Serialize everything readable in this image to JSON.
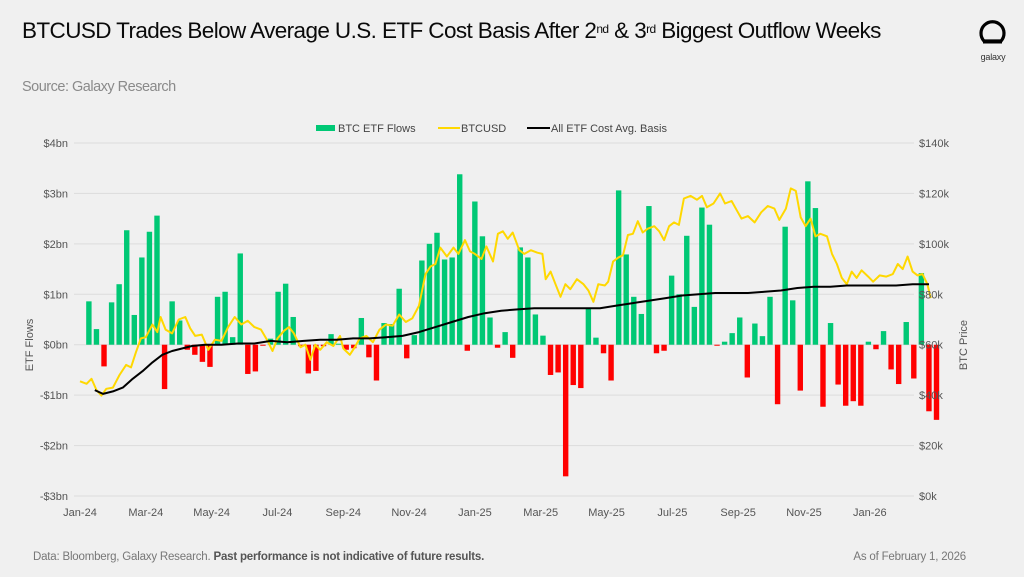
{
  "header": {
    "title_part1": "BTCUSD Trades Below Average U.S. ETF Cost Basis After 2",
    "title_sup1": "nd",
    "title_part2": " & 3",
    "title_sup2": "rd",
    "title_part3": " Biggest Outflow Weeks",
    "subtitle": "Source: Galaxy Research",
    "logo_text": "galaxy"
  },
  "footer": {
    "source": "Data: Bloomberg, Galaxy Research.",
    "disclaimer": "Past performance is not indicative of future results.",
    "as_of": "As of February 1, 2026"
  },
  "colors": {
    "inflow": "#00c875",
    "outflow": "#ff0000",
    "btcusd": "#ffd800",
    "cost_basis": "#000000",
    "grid": "#dcdcdc"
  },
  "chart_data": {
    "type": "bar+line",
    "title": "BTCUSD Trades Below Average U.S. ETF Cost Basis After 2nd & 3rd Biggest Outflow Weeks",
    "legend": [
      "BTC ETF Flows",
      "BTCUSD",
      "All ETF Cost Avg. Basis"
    ],
    "legend_position": "top-center",
    "ylabel_left": "ETF Flows",
    "ylabel_right": "BTC Price",
    "ylim_left": [
      -3,
      4
    ],
    "ylim_right": [
      0,
      140
    ],
    "yticks_left": [
      "$4bn",
      "$3bn",
      "$2bn",
      "$1bn",
      "$0bn",
      "-$1bn",
      "-$2bn",
      "-$3bn"
    ],
    "yticks_right": [
      "$140k",
      "$120k",
      "$100k",
      "$80k",
      "$60k",
      "$40k",
      "$20k",
      "$0k"
    ],
    "xticks": [
      "Jan-24",
      "Mar-24",
      "May-24",
      "Jul-24",
      "Sep-24",
      "Nov-24",
      "Jan-25",
      "Mar-25",
      "May-25",
      "Jul-25",
      "Sep-25",
      "Nov-25",
      "Jan-26"
    ],
    "grid": true,
    "x_range_months": [
      0,
      25.1
    ],
    "weekly_flows_bn": [
      0.86,
      0.31,
      -0.43,
      0.84,
      1.2,
      2.27,
      0.59,
      1.73,
      2.24,
      2.56,
      -0.88,
      0.86,
      0.48,
      -0.1,
      -0.2,
      -0.34,
      -0.44,
      0.95,
      1.05,
      0.15,
      1.81,
      -0.58,
      -0.53,
      -0.02,
      0.12,
      1.05,
      1.21,
      0.55,
      -0.03,
      -0.57,
      -0.52,
      -0.03,
      0.21,
      0.02,
      -0.1,
      -0.07,
      0.53,
      -0.25,
      -0.71,
      0.43,
      0.41,
      1.11,
      -0.27,
      0.19,
      1.67,
      2.0,
      2.22,
      1.69,
      1.73,
      3.38,
      -0.12,
      2.84,
      2.15,
      0.54,
      -0.06,
      0.25,
      -0.26,
      1.93,
      1.73,
      0.6,
      0.18,
      -0.6,
      -0.55,
      -2.61,
      -0.8,
      -0.86,
      0.73,
      0.14,
      -0.17,
      -0.71,
      3.06,
      1.79,
      0.95,
      0.61,
      2.75,
      -0.17,
      -0.12,
      1.37,
      1.0,
      2.16,
      0.75,
      2.72,
      2.38,
      -0.02,
      0.06,
      0.23,
      0.54,
      -0.65,
      0.42,
      0.17,
      0.95,
      -1.18,
      2.34,
      0.88,
      -0.91,
      3.24,
      2.71,
      -1.23,
      0.43,
      -0.79,
      -1.21,
      -1.12,
      -1.21,
      0.06,
      -0.09,
      0.27,
      -0.49,
      -0.78,
      0.45,
      -0.67,
      1.42,
      -1.32,
      -1.49
    ],
    "btcusd_k": [
      [
        0.0,
        45.5
      ],
      [
        0.2,
        44.5
      ],
      [
        0.35,
        46.5
      ],
      [
        0.5,
        42.0
      ],
      [
        0.65,
        39.8
      ],
      [
        0.8,
        42.5
      ],
      [
        1.0,
        43.0
      ],
      [
        1.2,
        48.0
      ],
      [
        1.4,
        52.0
      ],
      [
        1.55,
        51.0
      ],
      [
        1.7,
        57.0
      ],
      [
        1.85,
        62.5
      ],
      [
        2.0,
        63.0
      ],
      [
        2.2,
        68.0
      ],
      [
        2.35,
        65.0
      ],
      [
        2.45,
        71.0
      ],
      [
        2.6,
        66.0
      ],
      [
        2.8,
        64.5
      ],
      [
        3.0,
        70.0
      ],
      [
        3.2,
        71.0
      ],
      [
        3.35,
        66.5
      ],
      [
        3.5,
        63.5
      ],
      [
        3.7,
        64.0
      ],
      [
        3.9,
        58.0
      ],
      [
        4.1,
        62.0
      ],
      [
        4.3,
        61.5
      ],
      [
        4.5,
        67.0
      ],
      [
        4.7,
        71.0
      ],
      [
        4.9,
        68.0
      ],
      [
        5.1,
        69.5
      ],
      [
        5.3,
        67.0
      ],
      [
        5.5,
        66.0
      ],
      [
        5.7,
        61.5
      ],
      [
        5.85,
        57.5
      ],
      [
        6.0,
        62.5
      ],
      [
        6.2,
        65.5
      ],
      [
        6.35,
        67.0
      ],
      [
        6.5,
        64.5
      ],
      [
        6.7,
        59.0
      ],
      [
        6.85,
        60.0
      ],
      [
        7.0,
        54.0
      ],
      [
        7.15,
        60.0
      ],
      [
        7.3,
        58.0
      ],
      [
        7.5,
        61.0
      ],
      [
        7.7,
        59.5
      ],
      [
        7.9,
        63.5
      ],
      [
        8.0,
        58.5
      ],
      [
        8.2,
        56.0
      ],
      [
        8.35,
        59.0
      ],
      [
        8.5,
        62.5
      ],
      [
        8.7,
        63.5
      ],
      [
        8.9,
        61.0
      ],
      [
        9.1,
        66.0
      ],
      [
        9.3,
        68.0
      ],
      [
        9.5,
        67.5
      ],
      [
        9.7,
        72.0
      ],
      [
        9.9,
        69.0
      ],
      [
        10.1,
        70.5
      ],
      [
        10.3,
        75.5
      ],
      [
        10.5,
        88.0
      ],
      [
        10.65,
        91.0
      ],
      [
        10.8,
        92.0
      ],
      [
        10.95,
        98.5
      ],
      [
        11.15,
        95.0
      ],
      [
        11.35,
        98.5
      ],
      [
        11.5,
        96.0
      ],
      [
        11.7,
        101.5
      ],
      [
        11.85,
        97.0
      ],
      [
        12.0,
        96.0
      ],
      [
        12.2,
        94.0
      ],
      [
        12.35,
        99.0
      ],
      [
        12.55,
        93.0
      ],
      [
        12.7,
        104.0
      ],
      [
        12.85,
        105.0
      ],
      [
        13.0,
        102.0
      ],
      [
        13.15,
        104.5
      ],
      [
        13.35,
        97.5
      ],
      [
        13.5,
        96.0
      ],
      [
        13.7,
        97.5
      ],
      [
        13.9,
        96.5
      ],
      [
        14.05,
        96.0
      ],
      [
        14.15,
        86.0
      ],
      [
        14.3,
        89.0
      ],
      [
        14.45,
        84.0
      ],
      [
        14.6,
        79.0
      ],
      [
        14.75,
        84.0
      ],
      [
        14.9,
        82.0
      ],
      [
        15.1,
        86.0
      ],
      [
        15.3,
        84.0
      ],
      [
        15.45,
        81.5
      ],
      [
        15.6,
        77.0
      ],
      [
        15.75,
        84.0
      ],
      [
        15.95,
        83.5
      ],
      [
        16.05,
        85.0
      ],
      [
        16.2,
        93.0
      ],
      [
        16.35,
        94.5
      ],
      [
        16.5,
        95.5
      ],
      [
        16.65,
        103.5
      ],
      [
        16.8,
        104.0
      ],
      [
        16.95,
        109.0
      ],
      [
        17.1,
        104.5
      ],
      [
        17.25,
        106.0
      ],
      [
        17.45,
        107.0
      ],
      [
        17.6,
        105.0
      ],
      [
        17.75,
        101.5
      ],
      [
        17.9,
        107.0
      ],
      [
        18.05,
        108.5
      ],
      [
        18.2,
        107.5
      ],
      [
        18.35,
        118.0
      ],
      [
        18.55,
        119.0
      ],
      [
        18.75,
        117.5
      ],
      [
        18.9,
        119.0
      ],
      [
        19.05,
        114.5
      ],
      [
        19.25,
        116.0
      ],
      [
        19.45,
        120.0
      ],
      [
        19.6,
        116.0
      ],
      [
        19.8,
        117.0
      ],
      [
        19.95,
        113.5
      ],
      [
        20.1,
        110.0
      ],
      [
        20.3,
        111.0
      ],
      [
        20.5,
        108.5
      ],
      [
        20.7,
        112.5
      ],
      [
        20.9,
        115.0
      ],
      [
        21.1,
        114.0
      ],
      [
        21.25,
        109.5
      ],
      [
        21.45,
        114.0
      ],
      [
        21.6,
        122.0
      ],
      [
        21.75,
        121.0
      ],
      [
        21.9,
        110.5
      ],
      [
        22.05,
        107.0
      ],
      [
        22.2,
        110.0
      ],
      [
        22.35,
        103.0
      ],
      [
        22.5,
        104.0
      ],
      [
        22.7,
        103.0
      ],
      [
        22.85,
        96.0
      ],
      [
        23.0,
        92.0
      ],
      [
        23.15,
        86.5
      ],
      [
        23.3,
        84.0
      ],
      [
        23.45,
        89.0
      ],
      [
        23.6,
        86.5
      ],
      [
        23.75,
        89.5
      ],
      [
        23.95,
        87.0
      ],
      [
        24.1,
        85.0
      ],
      [
        24.3,
        87.5
      ],
      [
        24.5,
        87.0
      ],
      [
        24.7,
        88.0
      ],
      [
        24.85,
        92.0
      ],
      [
        25.0,
        90.0
      ],
      [
        25.15,
        95.0
      ],
      [
        25.3,
        89.0
      ],
      [
        25.45,
        87.5
      ],
      [
        25.6,
        88.0
      ],
      [
        25.75,
        84.0
      ],
      [
        25.85,
        78.5
      ]
    ],
    "cost_basis_k": [
      [
        0.45,
        42.0
      ],
      [
        0.7,
        40.5
      ],
      [
        1.0,
        41.5
      ],
      [
        1.3,
        43.0
      ],
      [
        1.6,
        46.5
      ],
      [
        1.9,
        49.5
      ],
      [
        2.2,
        53.0
      ],
      [
        2.5,
        56.0
      ],
      [
        2.8,
        57.5
      ],
      [
        3.1,
        58.5
      ],
      [
        3.4,
        59.5
      ],
      [
        3.8,
        60.0
      ],
      [
        4.3,
        60.0
      ],
      [
        4.8,
        60.5
      ],
      [
        5.3,
        60.5
      ],
      [
        5.8,
        61.5
      ],
      [
        6.3,
        61.0
      ],
      [
        6.8,
        61.5
      ],
      [
        7.3,
        62.0
      ],
      [
        7.8,
        62.0
      ],
      [
        8.3,
        62.5
      ],
      [
        8.8,
        62.5
      ],
      [
        9.3,
        63.0
      ],
      [
        9.8,
        63.5
      ],
      [
        10.3,
        65.0
      ],
      [
        10.8,
        67.0
      ],
      [
        11.3,
        69.0
      ],
      [
        11.8,
        71.0
      ],
      [
        12.3,
        72.5
      ],
      [
        12.8,
        73.5
      ],
      [
        13.3,
        74.0
      ],
      [
        13.8,
        74.5
      ],
      [
        14.3,
        74.5
      ],
      [
        14.8,
        74.5
      ],
      [
        15.3,
        74.5
      ],
      [
        15.8,
        74.5
      ],
      [
        16.3,
        75.5
      ],
      [
        16.8,
        76.5
      ],
      [
        17.3,
        77.5
      ],
      [
        17.8,
        78.5
      ],
      [
        18.3,
        79.5
      ],
      [
        18.8,
        80.0
      ],
      [
        19.3,
        80.5
      ],
      [
        19.8,
        80.5
      ],
      [
        20.3,
        80.5
      ],
      [
        20.8,
        81.0
      ],
      [
        21.3,
        81.5
      ],
      [
        21.8,
        82.5
      ],
      [
        22.3,
        83.0
      ],
      [
        22.8,
        83.0
      ],
      [
        23.3,
        83.5
      ],
      [
        23.8,
        83.5
      ],
      [
        24.3,
        83.5
      ],
      [
        24.8,
        83.5
      ],
      [
        25.3,
        84.0
      ],
      [
        25.8,
        84.0
      ]
    ]
  }
}
